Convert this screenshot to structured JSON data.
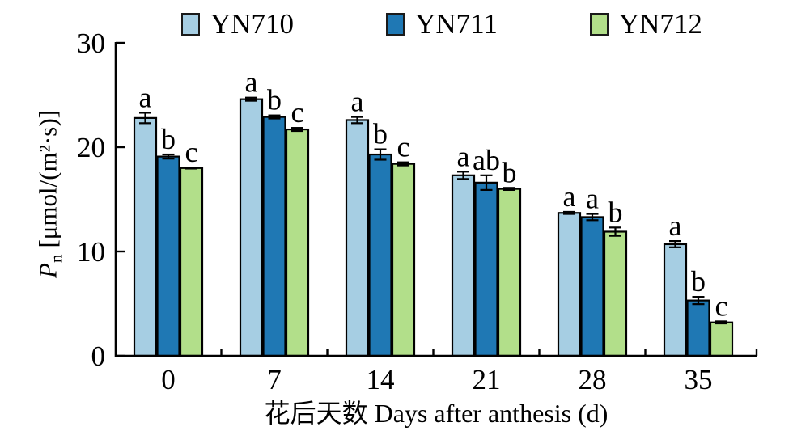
{
  "legend": {
    "position": "top"
  },
  "axes": {
    "y": {
      "symbol": "P",
      "symbol_sub": "n",
      "units": "[μmol/(m²·s)]",
      "ticks": [
        "0",
        "10",
        "20",
        "30"
      ]
    },
    "x": {
      "title": "花后天数 Days after anthesis (d)",
      "ticks": [
        "0",
        "7",
        "14",
        "21",
        "28",
        "35"
      ]
    }
  },
  "chart_data": {
    "type": "bar",
    "title": "",
    "categories": [
      0,
      7,
      14,
      21,
      28,
      35
    ],
    "xlabel": "花后天数 Days after anthesis (d)",
    "ylabel": "Pn [μmol/(m²·s)]",
    "ylim": [
      0,
      30
    ],
    "yticks": [
      0,
      10,
      20,
      30
    ],
    "grid": false,
    "legend_position": "top",
    "error_bars": true,
    "series": [
      {
        "name": "YN710",
        "color": "#a6cee3",
        "values": [
          22.8,
          24.6,
          22.6,
          17.3,
          13.7,
          10.7
        ],
        "errors": [
          0.5,
          0.15,
          0.3,
          0.35,
          0.1,
          0.3
        ],
        "sig_letters": [
          "a",
          "a",
          "a",
          "a",
          "a",
          "a"
        ]
      },
      {
        "name": "YN711",
        "color": "#1f78b4",
        "values": [
          19.1,
          22.9,
          19.3,
          16.6,
          13.3,
          5.3
        ],
        "errors": [
          0.2,
          0.15,
          0.5,
          0.7,
          0.3,
          0.35
        ],
        "sig_letters": [
          "b",
          "b",
          "b",
          "ab",
          "a",
          "b"
        ]
      },
      {
        "name": "YN712",
        "color": "#b2df8a",
        "values": [
          18.0,
          21.7,
          18.4,
          16.0,
          11.9,
          3.2
        ],
        "errors": [
          0.05,
          0.15,
          0.15,
          0.1,
          0.4,
          0.1
        ],
        "sig_letters": [
          "c",
          "c",
          "c",
          "b",
          "b",
          "c"
        ]
      }
    ]
  },
  "colors": {
    "axis": "#000000",
    "background": "#ffffff",
    "bar_border": "#000000"
  }
}
